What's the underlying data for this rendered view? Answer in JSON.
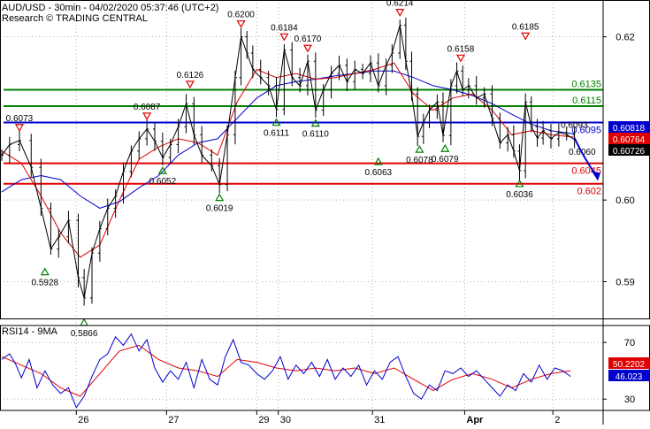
{
  "header": {
    "title": "AUD/USD - 30min - 04/02/2020 05:37:46 (UTC+2)",
    "subtitle": "Research © TRADING CENTRAL"
  },
  "colors": {
    "resistance": "#008000",
    "pivot": "#0000cc",
    "support": "#e00000",
    "ma_fast": "#e00000",
    "ma_slow": "#0000cc",
    "price": "#000000",
    "down_marker": "#e00000",
    "up_marker": "#008000",
    "grid": "#b0b0b0"
  },
  "chart_data": [
    {
      "type": "line",
      "name": "price",
      "x_labels": [
        "26",
        "27",
        "29",
        "30",
        "31",
        "Apr",
        "2"
      ],
      "y_ticks": [
        0.59,
        0.6,
        0.62
      ],
      "ylim": [
        0.5855,
        0.6245
      ],
      "grid": true,
      "close_path": [
        [
          0,
          0.6055
        ],
        [
          8,
          0.6068
        ],
        [
          18,
          0.6073
        ],
        [
          30,
          0.604
        ],
        [
          40,
          0.599
        ],
        [
          50,
          0.594
        ],
        [
          58,
          0.5955
        ],
        [
          68,
          0.5975
        ],
        [
          78,
          0.5905
        ],
        [
          84,
          0.588
        ],
        [
          92,
          0.5935
        ],
        [
          100,
          0.5965
        ],
        [
          108,
          0.599
        ],
        [
          116,
          0.6005
        ],
        [
          124,
          0.6035
        ],
        [
          132,
          0.606
        ],
        [
          140,
          0.6075
        ],
        [
          148,
          0.6087
        ],
        [
          156,
          0.6072
        ],
        [
          164,
          0.6052
        ],
        [
          172,
          0.6068
        ],
        [
          180,
          0.609
        ],
        [
          188,
          0.6118
        ],
        [
          196,
          0.608
        ],
        [
          204,
          0.6055
        ],
        [
          214,
          0.6042
        ],
        [
          222,
          0.6019
        ],
        [
          230,
          0.608
        ],
        [
          238,
          0.615
        ],
        [
          244,
          0.62
        ],
        [
          250,
          0.618
        ],
        [
          256,
          0.616
        ],
        [
          264,
          0.615
        ],
        [
          272,
          0.614
        ],
        [
          280,
          0.6111
        ],
        [
          288,
          0.6184
        ],
        [
          296,
          0.615
        ],
        [
          304,
          0.614
        ],
        [
          312,
          0.617
        ],
        [
          320,
          0.611
        ],
        [
          328,
          0.6135
        ],
        [
          336,
          0.6155
        ],
        [
          344,
          0.6165
        ],
        [
          352,
          0.6145
        ],
        [
          360,
          0.616
        ],
        [
          368,
          0.6155
        ],
        [
          376,
          0.6168
        ],
        [
          384,
          0.614
        ],
        [
          392,
          0.6165
        ],
        [
          398,
          0.618
        ],
        [
          406,
          0.6214
        ],
        [
          412,
          0.617
        ],
        [
          418,
          0.613
        ],
        [
          424,
          0.6078
        ],
        [
          430,
          0.6095
        ],
        [
          436,
          0.611
        ],
        [
          444,
          0.612
        ],
        [
          450,
          0.6079
        ],
        [
          458,
          0.614
        ],
        [
          464,
          0.6158
        ],
        [
          470,
          0.6135
        ],
        [
          476,
          0.614
        ],
        [
          484,
          0.6125
        ],
        [
          492,
          0.613
        ],
        [
          500,
          0.61
        ],
        [
          508,
          0.607
        ],
        [
          516,
          0.608
        ],
        [
          522,
          0.606
        ],
        [
          528,
          0.6036
        ],
        [
          534,
          0.612
        ],
        [
          540,
          0.609
        ],
        [
          546,
          0.6076
        ],
        [
          552,
          0.6085
        ],
        [
          560,
          0.6075
        ],
        [
          568,
          0.6083
        ],
        [
          576,
          0.608
        ],
        [
          584,
          0.6074
        ]
      ],
      "ma_fast": [
        [
          0,
          0.606
        ],
        [
          20,
          0.6045
        ],
        [
          40,
          0.6005
        ],
        [
          60,
          0.596
        ],
        [
          80,
          0.593
        ],
        [
          100,
          0.5945
        ],
        [
          120,
          0.6
        ],
        [
          140,
          0.605
        ],
        [
          160,
          0.6065
        ],
        [
          180,
          0.6075
        ],
        [
          200,
          0.607
        ],
        [
          220,
          0.6055
        ],
        [
          240,
          0.612
        ],
        [
          260,
          0.616
        ],
        [
          280,
          0.615
        ],
        [
          300,
          0.6155
        ],
        [
          320,
          0.6148
        ],
        [
          340,
          0.615
        ],
        [
          360,
          0.6155
        ],
        [
          380,
          0.616
        ],
        [
          400,
          0.6168
        ],
        [
          420,
          0.613
        ],
        [
          440,
          0.611
        ],
        [
          460,
          0.6125
        ],
        [
          480,
          0.613
        ],
        [
          500,
          0.611
        ],
        [
          520,
          0.608
        ],
        [
          540,
          0.6085
        ],
        [
          560,
          0.608
        ],
        [
          584,
          0.6077
        ]
      ],
      "ma_slow": [
        [
          0,
          0.601
        ],
        [
          20,
          0.6025
        ],
        [
          40,
          0.603
        ],
        [
          60,
          0.6025
        ],
        [
          80,
          0.6005
        ],
        [
          100,
          0.599
        ],
        [
          120,
          0.5998
        ],
        [
          140,
          0.6015
        ],
        [
          160,
          0.603
        ],
        [
          180,
          0.6055
        ],
        [
          200,
          0.607
        ],
        [
          220,
          0.6075
        ],
        [
          240,
          0.61
        ],
        [
          260,
          0.6125
        ],
        [
          280,
          0.614
        ],
        [
          300,
          0.6145
        ],
        [
          320,
          0.6148
        ],
        [
          340,
          0.6152
        ],
        [
          360,
          0.6155
        ],
        [
          380,
          0.6158
        ],
        [
          400,
          0.6158
        ],
        [
          420,
          0.615
        ],
        [
          440,
          0.614
        ],
        [
          460,
          0.6135
        ],
        [
          480,
          0.6128
        ],
        [
          500,
          0.6118
        ],
        [
          520,
          0.6105
        ],
        [
          540,
          0.6093
        ],
        [
          560,
          0.6085
        ],
        [
          584,
          0.6081
        ]
      ],
      "levels": [
        {
          "value": 0.6135,
          "label": "0.6135",
          "kind": "resistance"
        },
        {
          "value": 0.6115,
          "label": "0.6115",
          "kind": "resistance"
        },
        {
          "value": 0.6095,
          "label": "0.6095",
          "kind": "pivot"
        },
        {
          "value": 0.6045,
          "label": "0.6045",
          "kind": "support"
        },
        {
          "value": 0.602,
          "label": "0.602",
          "kind": "support"
        }
      ],
      "badges": [
        {
          "value": 0.60818,
          "label": "0.60818",
          "bg": "#0000cc",
          "fg": "#ffffff"
        },
        {
          "value": 0.60764,
          "label": "0.60764",
          "bg": "#e00000",
          "fg": "#ffffff"
        },
        {
          "value": 0.60726,
          "label": "0.60726",
          "bg": "#000000",
          "fg": "#ffffff"
        }
      ],
      "swing_labels": [
        {
          "x": 18,
          "value": 0.6073,
          "label": "0.6073",
          "dir": "down"
        },
        {
          "x": 44,
          "value": 0.5928,
          "label": "0.5928",
          "dir": "up"
        },
        {
          "x": 84,
          "value": 0.5866,
          "label": "0.5866",
          "dir": "up"
        },
        {
          "x": 148,
          "value": 0.6087,
          "label": "0.6087",
          "dir": "down"
        },
        {
          "x": 164,
          "value": 0.6052,
          "label": "0.6052",
          "dir": "up"
        },
        {
          "x": 192,
          "value": 0.6126,
          "label": "0.6126",
          "dir": "down"
        },
        {
          "x": 222,
          "value": 0.6019,
          "label": "0.6019",
          "dir": "up"
        },
        {
          "x": 244,
          "value": 0.62,
          "label": "0.6200",
          "dir": "down"
        },
        {
          "x": 280,
          "value": 0.6111,
          "label": "0.6111",
          "dir": "up"
        },
        {
          "x": 288,
          "value": 0.6184,
          "label": "0.6184",
          "dir": "down"
        },
        {
          "x": 312,
          "value": 0.617,
          "label": "0.6170",
          "dir": "down"
        },
        {
          "x": 320,
          "value": 0.611,
          "label": "0.6110",
          "dir": "up"
        },
        {
          "x": 384,
          "value": 0.6063,
          "label": "0.6063",
          "dir": "up"
        },
        {
          "x": 406,
          "value": 0.6214,
          "label": "0.6214",
          "dir": "down"
        },
        {
          "x": 426,
          "value": 0.6078,
          "label": "0.6078",
          "dir": "up"
        },
        {
          "x": 452,
          "value": 0.6079,
          "label": "0.6079",
          "dir": "up"
        },
        {
          "x": 468,
          "value": 0.6158,
          "label": "0.6158",
          "dir": "down"
        },
        {
          "x": 528,
          "value": 0.6036,
          "label": "0.6036",
          "dir": "up"
        },
        {
          "x": 534,
          "value": 0.6185,
          "label": "0.6185",
          "dir": "down"
        },
        {
          "x": 582,
          "value": 0.6093,
          "label": "0.6093",
          "dir": "none"
        },
        {
          "x": 590,
          "value": 0.606,
          "label": "0.6060",
          "dir": "none"
        }
      ],
      "forecast_arrow": {
        "from": [
          584,
          0.6076
        ],
        "to": [
          606,
          0.603
        ]
      }
    },
    {
      "type": "line",
      "name": "RSI14 - 9MA",
      "title": "RSI14 - 9MA",
      "y_ticks": [
        30,
        70
      ],
      "ylim": [
        22,
        82
      ],
      "grid": true,
      "rsi": [
        [
          0,
          58
        ],
        [
          8,
          62
        ],
        [
          14,
          55
        ],
        [
          20,
          45
        ],
        [
          28,
          58
        ],
        [
          36,
          38
        ],
        [
          44,
          50
        ],
        [
          52,
          40
        ],
        [
          60,
          34
        ],
        [
          68,
          38
        ],
        [
          76,
          24
        ],
        [
          84,
          32
        ],
        [
          92,
          46
        ],
        [
          100,
          58
        ],
        [
          108,
          62
        ],
        [
          116,
          74
        ],
        [
          124,
          68
        ],
        [
          132,
          76
        ],
        [
          140,
          64
        ],
        [
          148,
          72
        ],
        [
          156,
          52
        ],
        [
          164,
          42
        ],
        [
          172,
          50
        ],
        [
          180,
          44
        ],
        [
          188,
          56
        ],
        [
          196,
          38
        ],
        [
          204,
          58
        ],
        [
          212,
          44
        ],
        [
          220,
          40
        ],
        [
          228,
          60
        ],
        [
          236,
          72
        ],
        [
          244,
          56
        ],
        [
          252,
          54
        ],
        [
          260,
          48
        ],
        [
          268,
          44
        ],
        [
          276,
          50
        ],
        [
          284,
          60
        ],
        [
          292,
          44
        ],
        [
          300,
          54
        ],
        [
          308,
          48
        ],
        [
          316,
          56
        ],
        [
          324,
          46
        ],
        [
          332,
          58
        ],
        [
          340,
          44
        ],
        [
          348,
          52
        ],
        [
          356,
          46
        ],
        [
          364,
          54
        ],
        [
          372,
          40
        ],
        [
          380,
          50
        ],
        [
          388,
          44
        ],
        [
          396,
          56
        ],
        [
          404,
          60
        ],
        [
          412,
          46
        ],
        [
          420,
          34
        ],
        [
          428,
          30
        ],
        [
          436,
          40
        ],
        [
          444,
          36
        ],
        [
          452,
          50
        ],
        [
          460,
          48
        ],
        [
          468,
          52
        ],
        [
          476,
          46
        ],
        [
          484,
          50
        ],
        [
          492,
          44
        ],
        [
          500,
          38
        ],
        [
          508,
          32
        ],
        [
          516,
          40
        ],
        [
          524,
          36
        ],
        [
          532,
          48
        ],
        [
          540,
          42
        ],
        [
          548,
          54
        ],
        [
          556,
          44
        ],
        [
          564,
          52
        ],
        [
          572,
          50
        ],
        [
          580,
          46
        ]
      ],
      "ma": [
        [
          0,
          60
        ],
        [
          20,
          54
        ],
        [
          40,
          48
        ],
        [
          60,
          38
        ],
        [
          80,
          32
        ],
        [
          100,
          48
        ],
        [
          120,
          64
        ],
        [
          140,
          68
        ],
        [
          160,
          58
        ],
        [
          180,
          52
        ],
        [
          200,
          50
        ],
        [
          220,
          46
        ],
        [
          240,
          58
        ],
        [
          260,
          56
        ],
        [
          280,
          52
        ],
        [
          300,
          50
        ],
        [
          320,
          52
        ],
        [
          340,
          50
        ],
        [
          360,
          52
        ],
        [
          380,
          48
        ],
        [
          400,
          52
        ],
        [
          420,
          44
        ],
        [
          440,
          36
        ],
        [
          460,
          44
        ],
        [
          480,
          48
        ],
        [
          500,
          44
        ],
        [
          520,
          38
        ],
        [
          540,
          44
        ],
        [
          560,
          48
        ],
        [
          580,
          50
        ]
      ],
      "badges": [
        {
          "value": 50.2202,
          "label": "50.2202",
          "bg": "#e00000",
          "fg": "#ffffff"
        },
        {
          "value": 46.023,
          "label": "46.023",
          "bg": "#0000cc",
          "fg": "#ffffff"
        }
      ]
    }
  ]
}
